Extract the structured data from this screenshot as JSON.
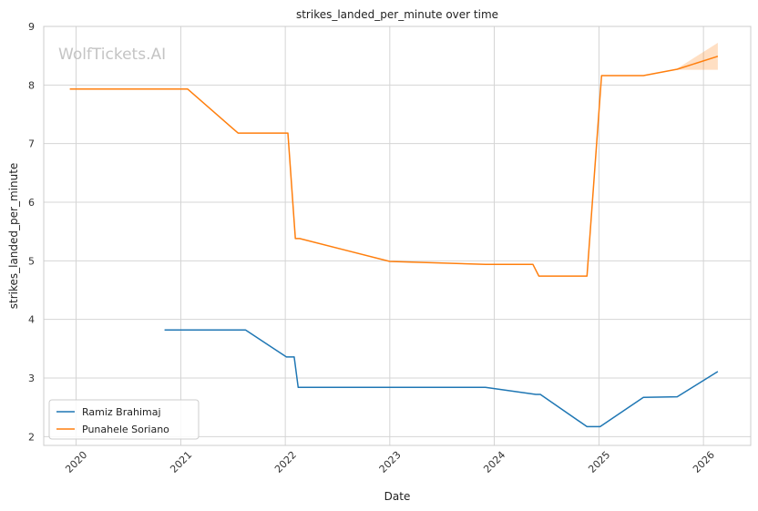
{
  "chart_data": {
    "type": "line",
    "title": "strikes_landed_per_minute over time",
    "xlabel": "Date",
    "ylabel": "strikes_landed_per_minute",
    "watermark": "WolfTickets.AI",
    "ylim": [
      1.85,
      9.0
    ],
    "xlim": [
      "2019-09-10",
      "2026-06-15"
    ],
    "y_ticks": [
      "2",
      "3",
      "4",
      "5",
      "6",
      "7",
      "8",
      "9"
    ],
    "x_ticks": [
      "2020",
      "2021",
      "2022",
      "2023",
      "2024",
      "2025",
      "2026"
    ],
    "grid": true,
    "legend_position": "lower-left",
    "series": [
      {
        "name": "Ramiz Brahimaj",
        "color": "#1f77b4",
        "points": [
          [
            "2020-11-05",
            3.82
          ],
          [
            "2021-08-15",
            3.82
          ],
          [
            "2022-01-05",
            3.36
          ],
          [
            "2022-02-01",
            3.36
          ],
          [
            "2022-02-15",
            2.84
          ],
          [
            "2023-12-01",
            2.84
          ],
          [
            "2024-05-25",
            2.72
          ],
          [
            "2024-06-10",
            2.72
          ],
          [
            "2024-11-20",
            2.17
          ],
          [
            "2025-01-05",
            2.17
          ],
          [
            "2025-06-05",
            2.67
          ],
          [
            "2025-10-01",
            2.68
          ],
          [
            "2026-02-20",
            3.11
          ]
        ]
      },
      {
        "name": "Punahele Soriano",
        "color": "#ff7f0e",
        "points": [
          [
            "2019-12-10",
            7.93
          ],
          [
            "2021-01-25",
            7.93
          ],
          [
            "2021-07-20",
            7.18
          ],
          [
            "2022-01-10",
            7.18
          ],
          [
            "2022-02-05",
            5.38
          ],
          [
            "2022-02-20",
            5.38
          ],
          [
            "2023-01-01",
            4.99
          ],
          [
            "2023-12-01",
            4.94
          ],
          [
            "2024-05-15",
            4.94
          ],
          [
            "2024-06-05",
            4.74
          ],
          [
            "2024-11-20",
            4.74
          ],
          [
            "2025-01-10",
            8.16
          ],
          [
            "2025-06-05",
            8.16
          ],
          [
            "2025-10-01",
            8.27
          ],
          [
            "2026-02-20",
            8.49
          ]
        ],
        "band": {
          "x": [
            "2025-10-01",
            "2026-02-20"
          ],
          "upper": [
            8.28,
            8.72
          ],
          "lower": [
            8.26,
            8.26
          ]
        }
      }
    ]
  }
}
